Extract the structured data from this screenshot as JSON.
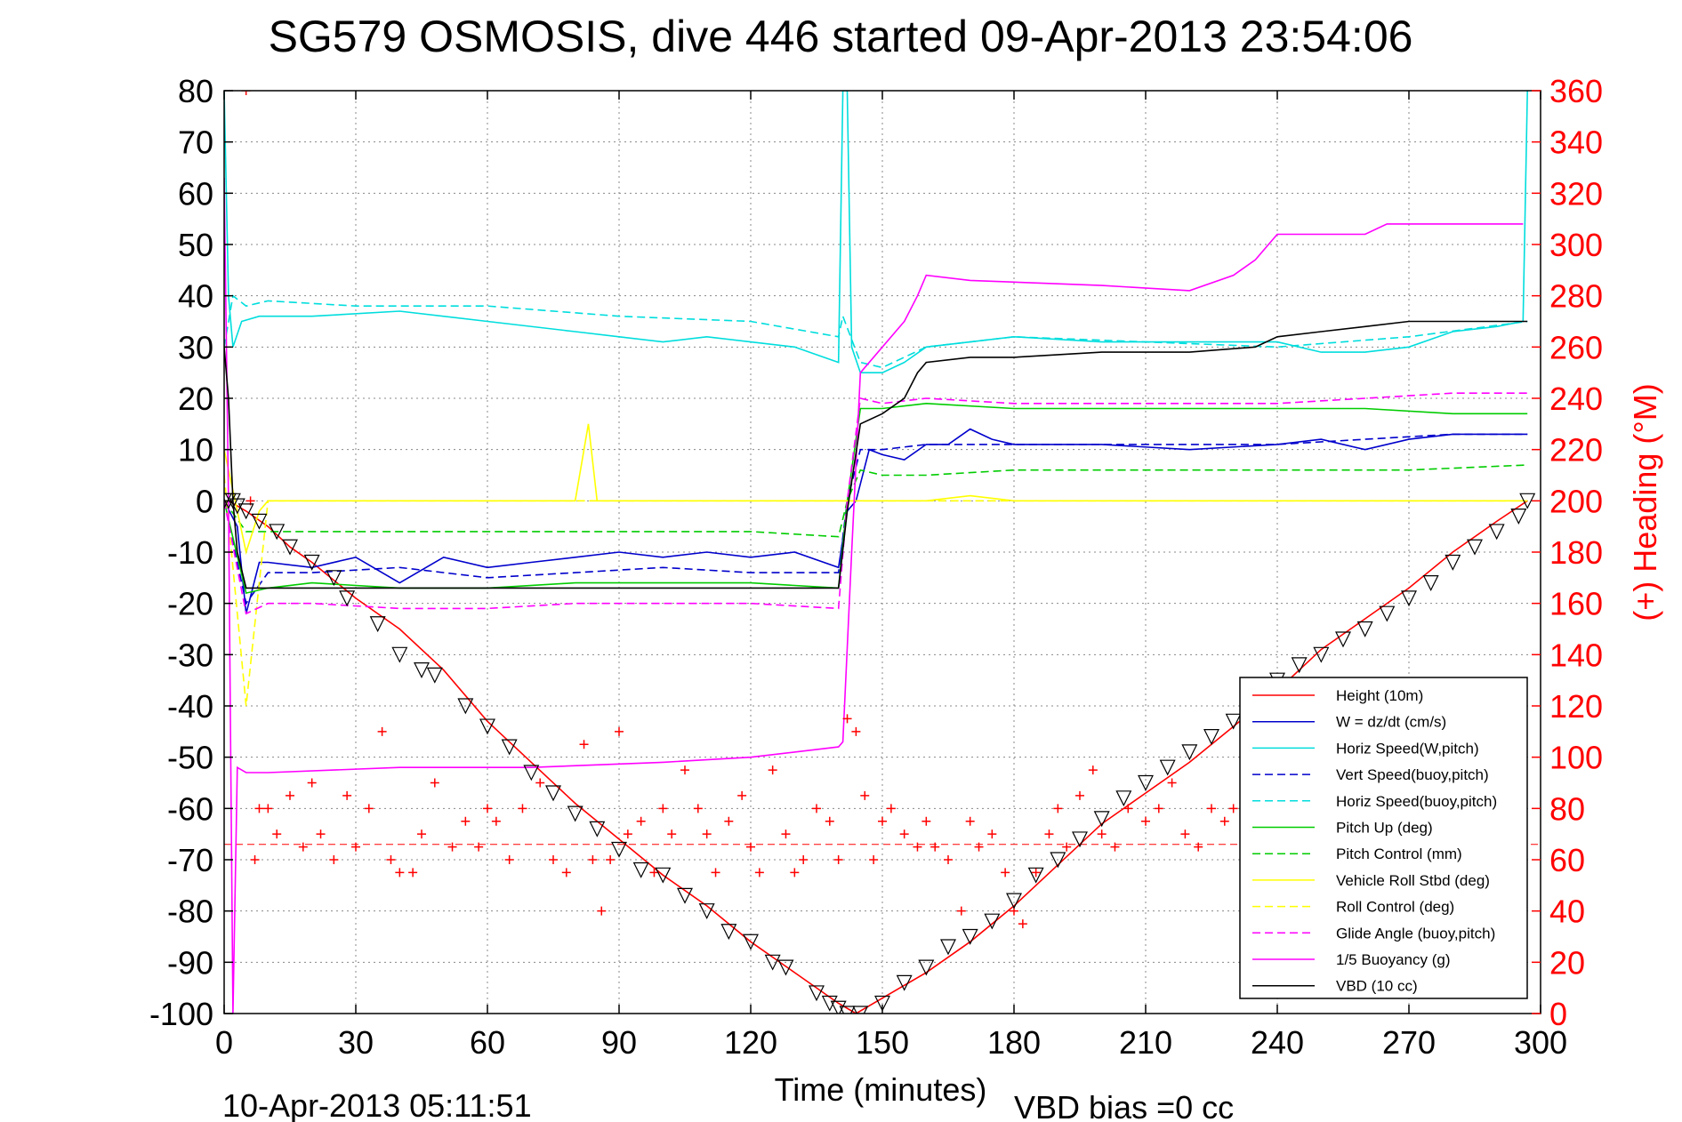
{
  "chart_data": {
    "type": "line",
    "title": "SG579 OSMOSIS, dive 446 started 09-Apr-2013 23:54:06",
    "xlabel": "Time (minutes)",
    "ylabel_right": "(+) Heading (°M)",
    "footer_left": "10-Apr-2013 05:11:51",
    "footer_right": "VBD bias =0 cc",
    "xlim": [
      0,
      300
    ],
    "ylim": [
      -100,
      80
    ],
    "y2lim": [
      0,
      360
    ],
    "x_ticks": [
      "0",
      "30",
      "60",
      "90",
      "120",
      "150",
      "180",
      "210",
      "240",
      "270",
      "300"
    ],
    "y_ticks": [
      "80",
      "70",
      "60",
      "50",
      "40",
      "30",
      "20",
      "10",
      "0",
      "-10",
      "-20",
      "-30",
      "-40",
      "-50",
      "-60",
      "-70",
      "-80",
      "-90",
      "-100"
    ],
    "y2_ticks": [
      "360",
      "340",
      "320",
      "300",
      "280",
      "260",
      "240",
      "220",
      "200",
      "180",
      "160",
      "140",
      "120",
      "100",
      "80",
      "60",
      "40",
      "20",
      "0"
    ],
    "grid": true,
    "legend_position": "bottom-right",
    "heading_reference": 66,
    "series": [
      {
        "name": "Height (10m)",
        "color": "#ff0000",
        "dash": "solid",
        "x": [
          0,
          1,
          3,
          5,
          10,
          15,
          20,
          30,
          40,
          50,
          60,
          70,
          80,
          90,
          100,
          110,
          120,
          130,
          140,
          144,
          150,
          160,
          170,
          180,
          190,
          200,
          210,
          220,
          230,
          240,
          250,
          260,
          270,
          280,
          290,
          297
        ],
        "y": [
          0,
          0,
          -1,
          -2,
          -5,
          -9,
          -12,
          -19,
          -25,
          -33,
          -43,
          -51,
          -59,
          -66,
          -73,
          -79,
          -86,
          -92,
          -98,
          -100,
          -97,
          -92,
          -86,
          -79,
          -71,
          -63,
          -57,
          -51,
          -44,
          -37,
          -29,
          -23,
          -17,
          -10,
          -4,
          0
        ]
      },
      {
        "name": "W = dz/dt (cm/s)",
        "color": "#0000cc",
        "dash": "solid",
        "x": [
          0,
          3,
          5,
          8,
          10,
          20,
          30,
          40,
          50,
          60,
          70,
          80,
          90,
          100,
          110,
          120,
          130,
          140,
          142,
          144,
          147,
          150,
          155,
          160,
          165,
          170,
          175,
          180,
          200,
          220,
          240,
          250,
          260,
          270,
          280,
          290,
          297
        ],
        "y": [
          0,
          -5,
          -22,
          -12,
          -12,
          -13,
          -11,
          -16,
          -11,
          -13,
          -12,
          -11,
          -10,
          -11,
          -10,
          -11,
          -10,
          -13,
          -2,
          0,
          10,
          9,
          8,
          11,
          11,
          14,
          12,
          11,
          11,
          10,
          11,
          12,
          10,
          12,
          13,
          13,
          13
        ]
      },
      {
        "name": "Horiz Speed(W,pitch)",
        "color": "#00dddd",
        "dash": "solid",
        "x": [
          0,
          1,
          2,
          4,
          8,
          20,
          40,
          60,
          80,
          90,
          100,
          110,
          120,
          130,
          140,
          141,
          142,
          143,
          145,
          150,
          155,
          160,
          170,
          180,
          200,
          220,
          240,
          250,
          260,
          270,
          280,
          290,
          296,
          297
        ],
        "y": [
          80,
          40,
          30,
          35,
          36,
          36,
          37,
          35,
          33,
          32,
          31,
          32,
          31,
          30,
          27,
          80,
          80,
          30,
          25,
          25,
          27,
          30,
          31,
          32,
          31,
          31,
          31,
          29,
          29,
          30,
          33,
          34,
          35,
          80
        ]
      },
      {
        "name": "Vert Speed(buoy,pitch)",
        "color": "#0000cc",
        "dash": "dashed",
        "x": [
          0,
          5,
          10,
          20,
          40,
          60,
          80,
          100,
          120,
          140,
          142,
          145,
          150,
          160,
          180,
          200,
          220,
          240,
          260,
          280,
          297
        ],
        "y": [
          0,
          -20,
          -14,
          -14,
          -13,
          -15,
          -14,
          -13,
          -14,
          -14,
          0,
          10,
          10,
          11,
          11,
          11,
          11,
          11,
          12,
          13,
          13
        ]
      },
      {
        "name": "Horiz Speed(buoy,pitch)",
        "color": "#00dddd",
        "dash": "dashed",
        "x": [
          0,
          2,
          5,
          10,
          30,
          60,
          90,
          120,
          140,
          141,
          145,
          150,
          160,
          180,
          210,
          240,
          270,
          297
        ],
        "y": [
          30,
          40,
          38,
          39,
          38,
          38,
          36,
          35,
          32,
          36,
          27,
          26,
          30,
          32,
          31,
          30,
          32,
          35
        ]
      },
      {
        "name": "Pitch Up (deg)",
        "color": "#00cc00",
        "dash": "solid",
        "x": [
          0,
          5,
          10,
          20,
          40,
          60,
          80,
          100,
          120,
          140,
          142,
          145,
          150,
          160,
          180,
          200,
          220,
          240,
          260,
          280,
          297
        ],
        "y": [
          0,
          -18,
          -17,
          -16,
          -17,
          -17,
          -16,
          -16,
          -16,
          -17,
          0,
          18,
          18,
          19,
          18,
          18,
          18,
          18,
          18,
          17,
          17
        ]
      },
      {
        "name": "Pitch Control (mm)",
        "color": "#00cc00",
        "dash": "dashed",
        "x": [
          0,
          5,
          10,
          40,
          60,
          90,
          120,
          140,
          142,
          145,
          150,
          160,
          180,
          210,
          240,
          270,
          297
        ],
        "y": [
          0,
          -6,
          -6,
          -6,
          -6,
          -6,
          -6,
          -7,
          0,
          6,
          5,
          5,
          6,
          6,
          6,
          6,
          7
        ]
      },
      {
        "name": "Vehicle Roll Stbd (deg)",
        "color": "#ffff00",
        "dash": "solid",
        "x": [
          0,
          5,
          8,
          10,
          15,
          20,
          30,
          40,
          50,
          60,
          70,
          80,
          83,
          85,
          90,
          100,
          110,
          120,
          130,
          140,
          150,
          160,
          170,
          180,
          190,
          200,
          210,
          220,
          230,
          240,
          250,
          260,
          270,
          280,
          290,
          297
        ],
        "y": [
          10,
          -10,
          -2,
          0,
          0,
          0,
          0,
          0,
          0,
          0,
          0,
          0,
          15,
          0,
          0,
          0,
          0,
          0,
          0,
          0,
          0,
          0,
          1,
          0,
          0,
          0,
          0,
          0,
          0,
          0,
          0,
          0,
          0,
          0,
          0,
          0
        ]
      },
      {
        "name": "Roll Control (deg)",
        "color": "#ffff00",
        "dash": "dashed",
        "x": [
          0,
          5,
          10,
          30,
          60,
          90,
          120,
          150,
          180,
          210,
          240,
          270,
          297
        ],
        "y": [
          5,
          -40,
          0,
          0,
          0,
          0,
          0,
          0,
          0,
          0,
          0,
          0,
          0
        ]
      },
      {
        "name": "Glide Angle (buoy,pitch)",
        "color": "#ff00ff",
        "dash": "dashed",
        "x": [
          0,
          5,
          10,
          20,
          40,
          60,
          80,
          100,
          120,
          140,
          142,
          145,
          150,
          160,
          180,
          200,
          220,
          240,
          260,
          280,
          297
        ],
        "y": [
          0,
          -22,
          -20,
          -20,
          -21,
          -21,
          -20,
          -20,
          -20,
          -21,
          0,
          20,
          19,
          20,
          19,
          19,
          19,
          19,
          20,
          21,
          21
        ]
      },
      {
        "name": "1/5 Buoyancy (g)",
        "color": "#ff00ff",
        "dash": "solid",
        "x": [
          0,
          1,
          2,
          3,
          5,
          10,
          40,
          70,
          100,
          120,
          140,
          141,
          143,
          145,
          155,
          158,
          160,
          170,
          200,
          220,
          230,
          235,
          240,
          260,
          265,
          296
        ],
        "y": [
          63,
          0,
          -100,
          -52,
          -53,
          -53,
          -52,
          -52,
          -51,
          -50,
          -48,
          -47,
          -10,
          25,
          35,
          40,
          44,
          43,
          42,
          41,
          44,
          47,
          52,
          52,
          54,
          54
        ]
      },
      {
        "name": "VBD (10 cc)",
        "color": "#000000",
        "dash": "solid",
        "x": [
          0,
          1,
          2,
          3,
          5,
          10,
          140,
          142,
          145,
          150,
          155,
          158,
          160,
          170,
          180,
          200,
          210,
          220,
          235,
          240,
          250,
          260,
          270,
          280,
          297
        ],
        "y": [
          30,
          20,
          0,
          -10,
          -17,
          -17,
          -17,
          -2,
          15,
          17,
          20,
          25,
          27,
          28,
          28,
          29,
          29,
          29,
          30,
          32,
          33,
          34,
          35,
          35,
          35
        ]
      },
      {
        "name": "Heading",
        "color": "#ff0000",
        "dash": "markers",
        "axis": "right",
        "x": [
          5,
          6,
          7,
          8,
          10,
          12,
          15,
          18,
          20,
          22,
          25,
          28,
          30,
          33,
          36,
          38,
          40,
          43,
          45,
          48,
          52,
          55,
          58,
          60,
          62,
          65,
          68,
          72,
          75,
          78,
          82,
          84,
          86,
          88,
          90,
          92,
          95,
          98,
          100,
          102,
          105,
          108,
          110,
          112,
          115,
          118,
          120,
          122,
          125,
          128,
          130,
          132,
          135,
          138,
          140,
          142,
          144,
          146,
          148,
          150,
          152,
          155,
          158,
          160,
          162,
          165,
          168,
          170,
          172,
          175,
          178,
          180,
          182,
          185,
          188,
          190,
          192,
          195,
          198,
          200,
          203,
          206,
          210,
          213,
          216,
          219,
          222,
          225,
          228,
          230
        ],
        "y": [
          360,
          200,
          60,
          80,
          80,
          70,
          85,
          65,
          90,
          70,
          60,
          85,
          65,
          80,
          110,
          60,
          55,
          55,
          70,
          90,
          65,
          75,
          65,
          80,
          75,
          60,
          80,
          90,
          60,
          55,
          105,
          60,
          40,
          60,
          110,
          70,
          75,
          55,
          80,
          70,
          95,
          80,
          70,
          55,
          75,
          85,
          65,
          55,
          95,
          70,
          55,
          60,
          80,
          75,
          60,
          115,
          110,
          85,
          60,
          75,
          80,
          70,
          65,
          75,
          65,
          60,
          40,
          75,
          65,
          70,
          55,
          40,
          35,
          55,
          70,
          80,
          65,
          85,
          95,
          70,
          65,
          80,
          75,
          80,
          90,
          70,
          65,
          80,
          75,
          80
        ]
      },
      {
        "name": "",
        "color": "#000000",
        "dash": "markers-triangle",
        "x": [
          0,
          1,
          2,
          3,
          5,
          8,
          12,
          15,
          20,
          25,
          28,
          35,
          40,
          45,
          48,
          55,
          60,
          65,
          70,
          75,
          80,
          85,
          90,
          95,
          100,
          105,
          110,
          115,
          120,
          125,
          128,
          135,
          138,
          140,
          142,
          145,
          150,
          155,
          160,
          165,
          170,
          175,
          180,
          185,
          190,
          195,
          200,
          205,
          210,
          215,
          220,
          225,
          230,
          235,
          240,
          245,
          250,
          255,
          260,
          265,
          270,
          275,
          280,
          285,
          290,
          295,
          297
        ],
        "y": [
          0,
          0,
          0,
          -1,
          -2,
          -4,
          -6,
          -9,
          -12,
          -15,
          -19,
          -24,
          -30,
          -33,
          -34,
          -40,
          -44,
          -48,
          -53,
          -57,
          -61,
          -64,
          -68,
          -72,
          -73,
          -77,
          -80,
          -84,
          -86,
          -90,
          -91,
          -96,
          -98,
          -99,
          -100,
          -100,
          -98,
          -94,
          -91,
          -87,
          -85,
          -82,
          -78,
          -73,
          -70,
          -66,
          -62,
          -58,
          -55,
          -52,
          -49,
          -46,
          -43,
          -39,
          -35,
          -32,
          -30,
          -27,
          -25,
          -22,
          -19,
          -16,
          -12,
          -9,
          -6,
          -3,
          0
        ]
      }
    ]
  },
  "legend_entries": [
    "Height (10m)",
    "W = dz/dt (cm/s)",
    "Horiz Speed(W,pitch)",
    "Vert Speed(buoy,pitch)",
    "Horiz Speed(buoy,pitch)",
    "Pitch Up (deg)",
    "Pitch Control (mm)",
    "Vehicle Roll Stbd (deg)",
    "Roll Control (deg)",
    "Glide Angle (buoy,pitch)",
    "1/5 Buoyancy (g)",
    "VBD (10 cc)"
  ]
}
